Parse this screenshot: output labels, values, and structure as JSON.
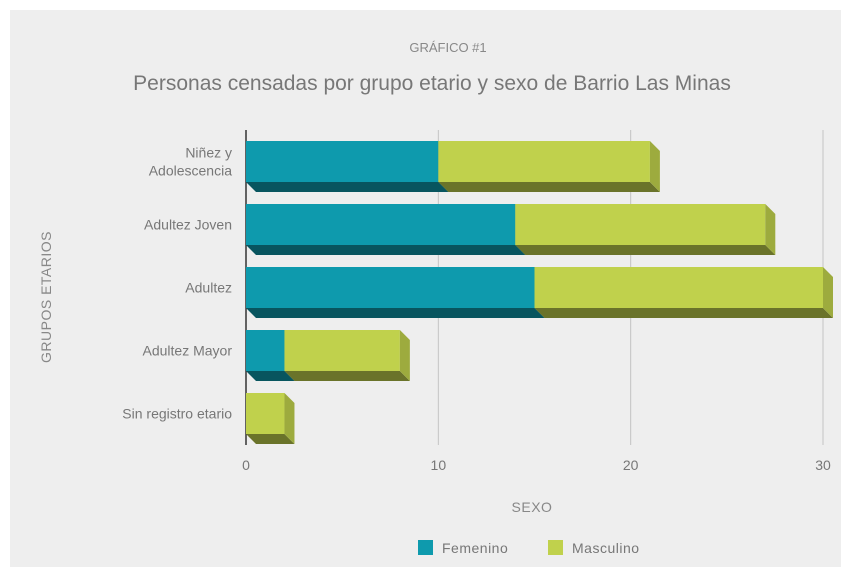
{
  "chart_data": {
    "type": "bar",
    "orientation": "horizontal",
    "stacked": true,
    "overline": "GRÁFICO #1",
    "title": "Personas censadas por grupo etario y sexo de Barrio Las Minas",
    "xlabel": "SEXO",
    "ylabel": "GRUPOS ETARIOS",
    "categories": [
      [
        "Niñez y",
        "Adolescencia"
      ],
      [
        "Adultez Joven"
      ],
      [
        "Adultez"
      ],
      [
        "Adultez Mayor"
      ],
      [
        "Sin registro etario"
      ]
    ],
    "series": [
      {
        "name": "Femenino",
        "color": "#0e9aad",
        "values": [
          10,
          14,
          15,
          2,
          0
        ]
      },
      {
        "name": "Masculino",
        "color": "#c0d14c",
        "values": [
          11,
          13,
          15,
          6,
          2
        ]
      }
    ],
    "xlim": [
      0,
      30
    ],
    "xticks": [
      "0",
      "10",
      "20",
      "30"
    ],
    "grid": true,
    "legend_position": "bottom"
  }
}
